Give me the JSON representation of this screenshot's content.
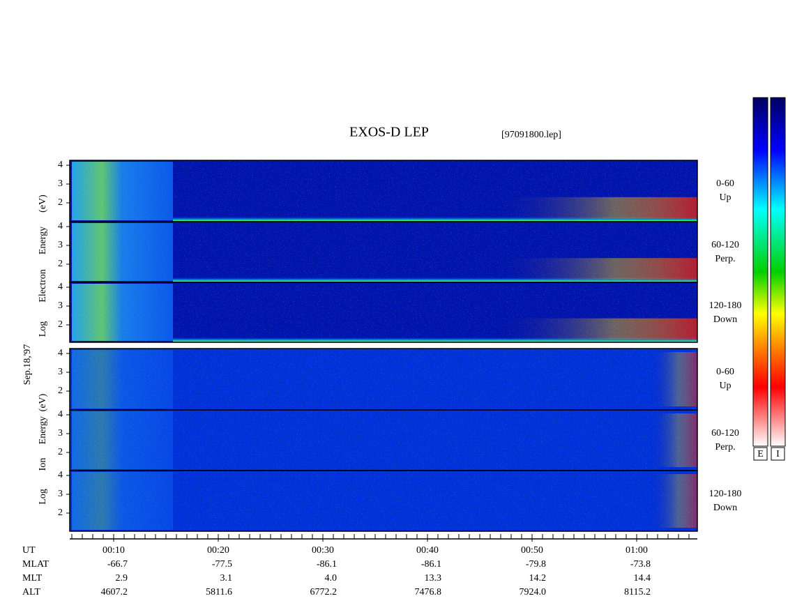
{
  "title": "EXOS-D LEP",
  "file": "[97091800.lep]",
  "date": "Sep.18,'97",
  "electron_axis": [
    "Log",
    "Electron",
    "Energy",
    "(eV)"
  ],
  "ion_axis": [
    "Log",
    "Ion",
    "Energy",
    "(eV)"
  ],
  "yticks": [
    4,
    3,
    2
  ],
  "pitch_panels": [
    {
      "range": "0-60",
      "direction": "Up"
    },
    {
      "range": "60-120",
      "direction": "Perp."
    },
    {
      "range": "120-180",
      "direction": "Down"
    }
  ],
  "colorbars": [
    "E",
    "I"
  ],
  "ephemeris": {
    "rows": [
      [
        "UT",
        "00:10",
        "00:20",
        "00:30",
        "00:40",
        "00:50",
        "01:00"
      ],
      [
        "MLAT",
        "-66.7",
        "-77.5",
        "-86.1",
        "-86.1",
        "-79.8",
        "-73.8"
      ],
      [
        "MLT",
        "2.9",
        "3.1",
        "4.0",
        "13.3",
        "14.2",
        "14.4"
      ],
      [
        "ALT",
        "4607.2",
        "5811.6",
        "6772.2",
        "7476.8",
        "7924.0",
        "8115.2"
      ]
    ]
  }
}
